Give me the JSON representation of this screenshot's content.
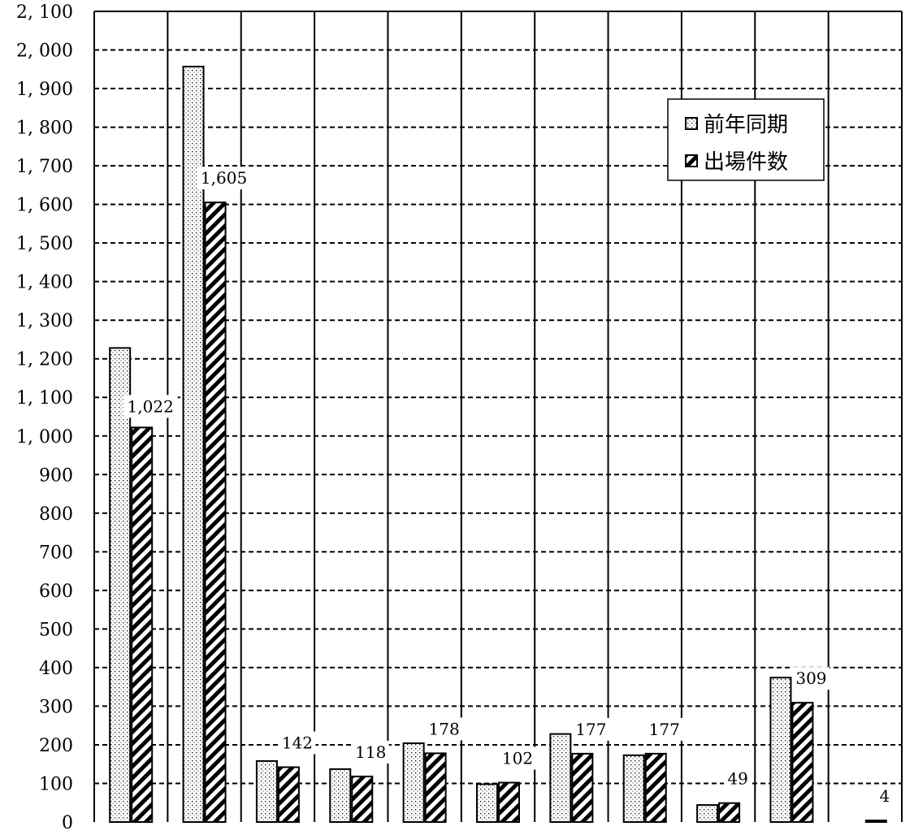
{
  "chart_data": {
    "type": "bar",
    "title": "",
    "xlabel": "",
    "ylabel": "",
    "ylim": [
      0,
      2100
    ],
    "ytick_step": 100,
    "yticks": [
      "0",
      "100",
      "200",
      "300",
      "400",
      "500",
      "600",
      "700",
      "800",
      "900",
      "1, 000",
      "1, 100",
      "1, 200",
      "1, 300",
      "1, 400",
      "1, 500",
      "1, 600",
      "1, 700",
      "1, 800",
      "1, 900",
      "2, 000",
      "2, 100"
    ],
    "grid": "dashed horizontal, solid vertical category separators",
    "legend_position": "top-right",
    "category_count": 11,
    "categories": [
      "",
      "",
      "",
      "",
      "",
      "",
      "",
      "",
      "",
      "",
      ""
    ],
    "series": [
      {
        "name": "前年同期",
        "pattern": "dots",
        "values": [
          1228,
          1957,
          158,
          137,
          204,
          98,
          228,
          173,
          44,
          374,
          0
        ]
      },
      {
        "name": "出場件数",
        "pattern": "hatch",
        "values": [
          1022,
          1605,
          142,
          118,
          178,
          102,
          177,
          177,
          49,
          309,
          4
        ]
      }
    ],
    "data_labels": [
      "1,022",
      "1,605",
      "142",
      "118",
      "178",
      "102",
      "177",
      "177",
      "49",
      "309",
      "4"
    ]
  },
  "colors": {
    "ink": "#000000",
    "background": "#ffffff"
  }
}
